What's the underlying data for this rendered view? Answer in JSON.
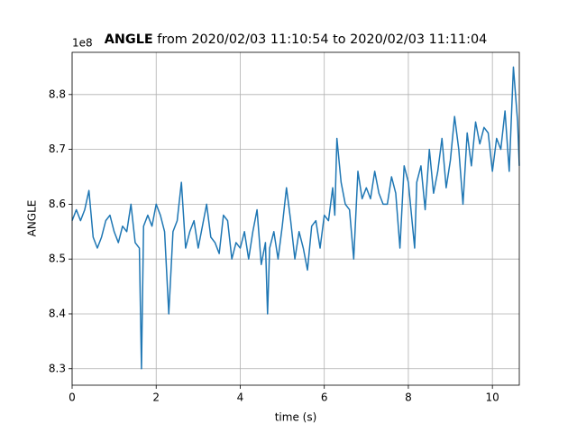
{
  "chart_data": {
    "type": "line",
    "title_parameter": "ANGLE",
    "title_range": "from 2020/02/03 11:10:54 to 2020/02/03 11:11:04",
    "x_label": "time (s)",
    "y_label": "ANGLE",
    "offset_label": "1e8",
    "xlim": [
      0,
      10.64
    ],
    "ylim": [
      8.27,
      8.877
    ],
    "xticks": [
      0,
      2,
      4,
      6,
      8,
      10
    ],
    "yticks": [
      8.3,
      8.4,
      8.5,
      8.6,
      8.7,
      8.8
    ],
    "grid": true,
    "series": [
      {
        "name": "ANGLE",
        "color": "#1f77b4",
        "x": [
          0,
          0.1,
          0.2,
          0.3,
          0.4,
          0.5,
          0.6,
          0.7,
          0.8,
          0.9,
          1.0,
          1.1,
          1.2,
          1.3,
          1.4,
          1.5,
          1.6,
          1.65,
          1.7,
          1.8,
          1.9,
          2.0,
          2.1,
          2.2,
          2.3,
          2.4,
          2.5,
          2.6,
          2.7,
          2.8,
          2.9,
          3.0,
          3.1,
          3.2,
          3.3,
          3.4,
          3.5,
          3.6,
          3.7,
          3.8,
          3.9,
          4.0,
          4.1,
          4.2,
          4.3,
          4.4,
          4.5,
          4.6,
          4.65,
          4.7,
          4.8,
          4.9,
          5.0,
          5.1,
          5.2,
          5.3,
          5.4,
          5.5,
          5.6,
          5.7,
          5.8,
          5.9,
          6.0,
          6.1,
          6.2,
          6.25,
          6.3,
          6.4,
          6.5,
          6.6,
          6.7,
          6.8,
          6.9,
          7.0,
          7.1,
          7.2,
          7.3,
          7.4,
          7.5,
          7.6,
          7.7,
          7.8,
          7.9,
          8.0,
          8.1,
          8.15,
          8.2,
          8.3,
          8.4,
          8.5,
          8.6,
          8.7,
          8.8,
          8.9,
          9.0,
          9.1,
          9.2,
          9.3,
          9.4,
          9.5,
          9.6,
          9.7,
          9.8,
          9.9,
          10.0,
          10.1,
          10.2,
          10.3,
          10.4,
          10.5,
          10.6,
          10.64
        ],
        "values": [
          8.57,
          8.59,
          8.57,
          8.59,
          8.625,
          8.54,
          8.52,
          8.54,
          8.57,
          8.58,
          8.55,
          8.53,
          8.56,
          8.55,
          8.6,
          8.53,
          8.52,
          8.3,
          8.56,
          8.58,
          8.56,
          8.6,
          8.58,
          8.55,
          8.4,
          8.55,
          8.57,
          8.64,
          8.52,
          8.55,
          8.57,
          8.52,
          8.56,
          8.6,
          8.54,
          8.53,
          8.51,
          8.58,
          8.57,
          8.5,
          8.53,
          8.52,
          8.55,
          8.5,
          8.55,
          8.59,
          8.49,
          8.53,
          8.4,
          8.52,
          8.55,
          8.5,
          8.56,
          8.63,
          8.57,
          8.5,
          8.55,
          8.52,
          8.48,
          8.56,
          8.57,
          8.52,
          8.58,
          8.57,
          8.63,
          8.58,
          8.72,
          8.64,
          8.6,
          8.59,
          8.5,
          8.66,
          8.61,
          8.63,
          8.61,
          8.66,
          8.62,
          8.6,
          8.6,
          8.65,
          8.62,
          8.52,
          8.67,
          8.64,
          8.56,
          8.52,
          8.64,
          8.67,
          8.59,
          8.7,
          8.62,
          8.66,
          8.72,
          8.63,
          8.68,
          8.76,
          8.7,
          8.6,
          8.73,
          8.67,
          8.75,
          8.71,
          8.74,
          8.73,
          8.66,
          8.72,
          8.7,
          8.77,
          8.66,
          8.85,
          8.75,
          8.67
        ]
      }
    ]
  }
}
